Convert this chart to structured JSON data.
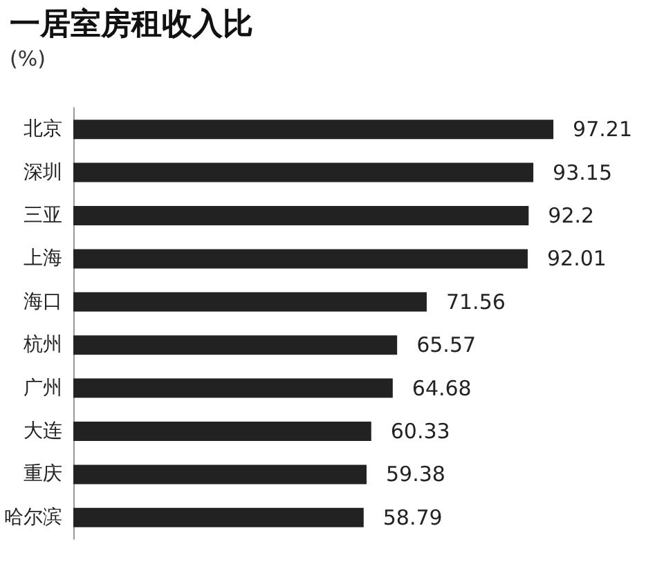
{
  "chart_data": {
    "type": "bar",
    "orientation": "horizontal",
    "title": "一居室房租收入比",
    "subtitle": "(%)",
    "categories": [
      "北京",
      "深圳",
      "三亚",
      "上海",
      "海口",
      "杭州",
      "广州",
      "大连",
      "重庆",
      "哈尔滨"
    ],
    "values": [
      97.21,
      93.15,
      92.2,
      92.01,
      71.56,
      65.57,
      64.68,
      60.33,
      59.38,
      58.79
    ],
    "color": "#222222",
    "data_labels": true
  }
}
